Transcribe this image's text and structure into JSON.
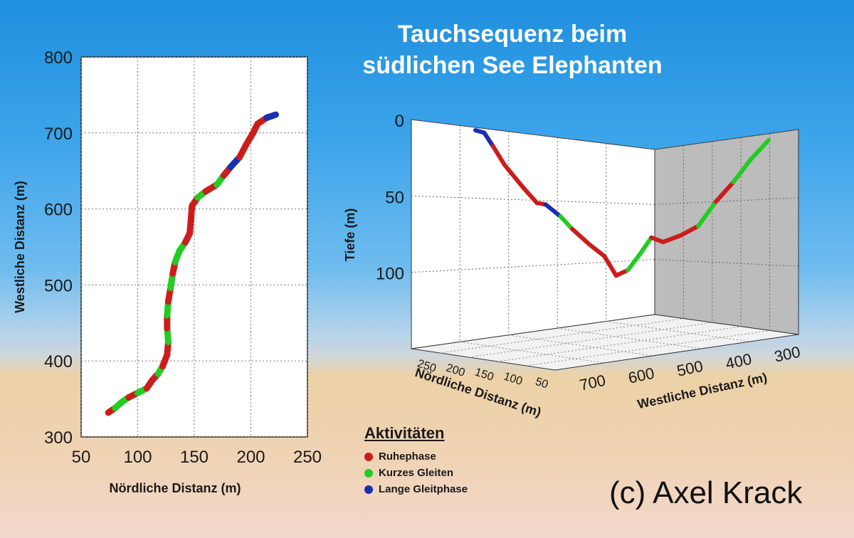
{
  "title": {
    "line1": "Tauchsequenz beim",
    "line2": "südlichen See Elephanten"
  },
  "legend": {
    "title": "Aktivitäten",
    "items": [
      {
        "label": "Ruhephase",
        "color": "#cc1c1c"
      },
      {
        "label": "Kurzes Gleiten",
        "color": "#22cc22"
      },
      {
        "label": "Lange Gleitphase",
        "color": "#1a2fb0"
      }
    ]
  },
  "copyright": "(c) Axel Krack",
  "chart_data": [
    {
      "type": "line",
      "xlabel": "Nördliche Distanz (m)",
      "ylabel": "Westliche Distanz (m)",
      "xlim": [
        50,
        250
      ],
      "ylim": [
        300,
        800
      ],
      "xticks": [
        "50",
        "100",
        "150",
        "200",
        "250"
      ],
      "yticks": [
        "300",
        "400",
        "500",
        "600",
        "700",
        "800"
      ],
      "grid": true,
      "points": [
        [
          74,
          332
        ],
        [
          80,
          338
        ],
        [
          86,
          346
        ],
        [
          92,
          352
        ],
        [
          100,
          358
        ],
        [
          108,
          364
        ],
        [
          113,
          375
        ],
        [
          118,
          383
        ],
        [
          122,
          393
        ],
        [
          126,
          408
        ],
        [
          127,
          425
        ],
        [
          126,
          443
        ],
        [
          126,
          460
        ],
        [
          127,
          478
        ],
        [
          129,
          496
        ],
        [
          131,
          515
        ],
        [
          133,
          530
        ],
        [
          137,
          545
        ],
        [
          142,
          556
        ],
        [
          146,
          568
        ],
        [
          147,
          585
        ],
        [
          148,
          604
        ],
        [
          153,
          615
        ],
        [
          160,
          623
        ],
        [
          170,
          632
        ],
        [
          176,
          644
        ],
        [
          182,
          655
        ],
        [
          190,
          668
        ],
        [
          196,
          685
        ],
        [
          202,
          700
        ],
        [
          206,
          712
        ],
        [
          214,
          720
        ],
        [
          222,
          724
        ]
      ],
      "activity": [
        "Ruhephase",
        "Kurzes Gleiten",
        "Kurzes Gleiten",
        "Ruhephase",
        "Kurzes Gleiten",
        "Ruhephase",
        "Ruhephase",
        "Kurzes Gleiten",
        "Ruhephase",
        "Ruhephase",
        "Kurzes Gleiten",
        "Ruhephase",
        "Kurzes Gleiten",
        "Ruhephase",
        "Kurzes Gleiten",
        "Ruhephase",
        "Kurzes Gleiten",
        "Kurzes Gleiten",
        "Ruhephase",
        "Ruhephase",
        "Ruhephase",
        "Ruhephase",
        "Kurzes Gleiten",
        "Ruhephase",
        "Kurzes Gleiten",
        "Ruhephase",
        "Lange Gleitphase",
        "Ruhephase",
        "Ruhephase",
        "Ruhephase",
        "Ruhephase",
        "Lange Gleitphase",
        "Lange Gleitphase"
      ]
    },
    {
      "type": "line",
      "dimensions": 3,
      "xlabel": "Nördliche Distanz (m)",
      "ylabel": "Westliche Distanz (m)",
      "zlabel": "Tiefe (m)",
      "xlim": [
        50,
        250
      ],
      "ylim": [
        300,
        700
      ],
      "zlim": [
        0,
        150
      ],
      "xticks": [
        "250",
        "200",
        "150",
        "100",
        "50"
      ],
      "yticks": [
        "700",
        "600",
        "500",
        "400",
        "300"
      ],
      "zticks": [
        "0",
        "50",
        "100"
      ],
      "grid": true,
      "depth_profile": [
        {
          "t": 0.0,
          "depth": 2,
          "activity": "Lange Gleitphase"
        },
        {
          "t": 0.03,
          "depth": 3,
          "activity": "Lange Gleitphase"
        },
        {
          "t": 0.06,
          "depth": 12,
          "activity": "Ruhephase"
        },
        {
          "t": 0.1,
          "depth": 25,
          "activity": "Ruhephase"
        },
        {
          "t": 0.16,
          "depth": 40,
          "activity": "Ruhephase"
        },
        {
          "t": 0.21,
          "depth": 52,
          "activity": "Ruhephase"
        },
        {
          "t": 0.24,
          "depth": 53,
          "activity": "Lange Gleitphase"
        },
        {
          "t": 0.29,
          "depth": 62,
          "activity": "Kurzes Gleiten"
        },
        {
          "t": 0.33,
          "depth": 72,
          "activity": "Ruhephase"
        },
        {
          "t": 0.39,
          "depth": 85,
          "activity": "Ruhephase"
        },
        {
          "t": 0.44,
          "depth": 95,
          "activity": "Ruhephase"
        },
        {
          "t": 0.48,
          "depth": 112,
          "activity": "Ruhephase"
        },
        {
          "t": 0.52,
          "depth": 108,
          "activity": "Kurzes Gleiten"
        },
        {
          "t": 0.56,
          "depth": 95,
          "activity": "Kurzes Gleiten"
        },
        {
          "t": 0.6,
          "depth": 80,
          "activity": "Ruhephase"
        },
        {
          "t": 0.64,
          "depth": 84,
          "activity": "Ruhephase"
        },
        {
          "t": 0.7,
          "depth": 78,
          "activity": "Ruhephase"
        },
        {
          "t": 0.76,
          "depth": 70,
          "activity": "Kurzes Gleiten"
        },
        {
          "t": 0.82,
          "depth": 50,
          "activity": "Ruhephase"
        },
        {
          "t": 0.88,
          "depth": 35,
          "activity": "Kurzes Gleiten"
        },
        {
          "t": 0.94,
          "depth": 18,
          "activity": "Kurzes Gleiten"
        },
        {
          "t": 1.0,
          "depth": 5,
          "activity": "Ruhephase"
        }
      ]
    }
  ]
}
